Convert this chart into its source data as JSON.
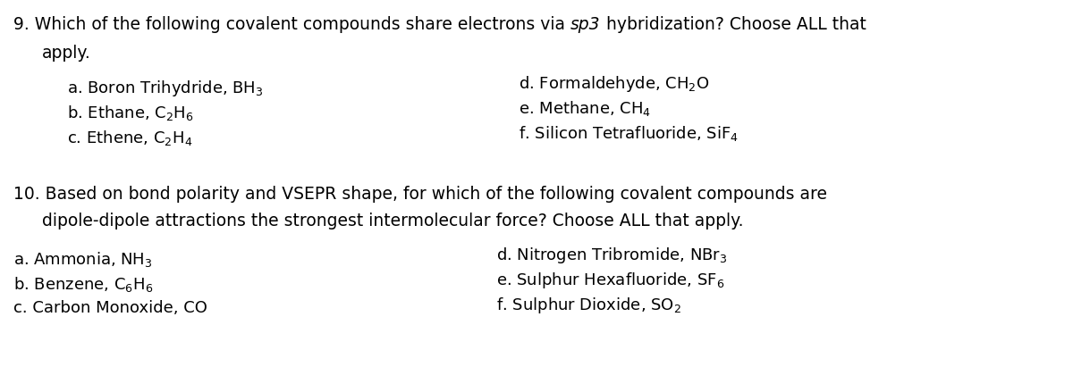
{
  "background_color": "#ffffff",
  "figsize": [
    12.0,
    4.11
  ],
  "dpi": 100,
  "q9_left_items": [
    "a. Boron Trihydride, BH$_3$",
    "b. Ethane, C$_2$H$_6$",
    "c. Ethene, C$_2$H$_4$"
  ],
  "q9_right_items": [
    "d. Formaldehyde, CH$_2$O",
    "e. Methane, CH$_4$",
    "f. Silicon Tetrafluoride, SiF$_4$"
  ],
  "q10_header_line1": "10. Based on bond polarity and VSEPR shape, for which of the following covalent compounds are",
  "q10_header_line2": "dipole-dipole attractions the strongest intermolecular force? Choose ALL that apply.",
  "q10_left_items": [
    "a. Ammonia, NH$_3$",
    "b. Benzene, C$_6$H$_6$",
    "c. Carbon Monoxide, CO"
  ],
  "q10_right_items": [
    "d. Nitrogen Tribromide, NBr$_3$",
    "e. Sulphur Hexafluoride, SF$_6$",
    "f. Sulphur Dioxide, SO$_2$"
  ],
  "font_size_header": 13.5,
  "font_size_items": 13.0,
  "text_color": "#000000",
  "font_family": "DejaVu Sans",
  "fig_w": 1200,
  "fig_h": 411
}
